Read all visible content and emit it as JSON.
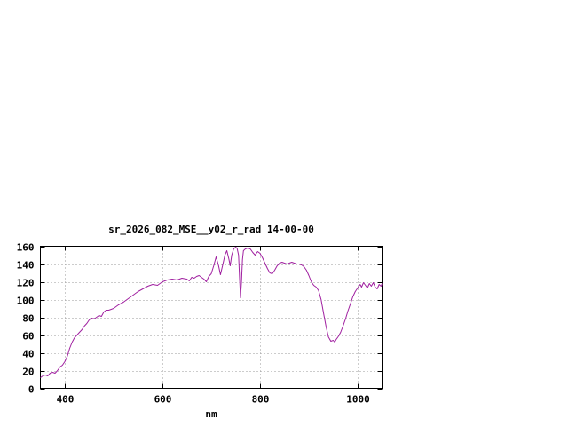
{
  "page": {
    "background_color": "#ffffff"
  },
  "chart_data": {
    "type": "line",
    "title": "sr_2026_082_MSE__y02_r_rad 14-00-00",
    "xlabel": "nm",
    "ylabel": "",
    "xlim": [
      350,
      1050
    ],
    "ylim": [
      0,
      160
    ],
    "xticks": [
      400,
      600,
      800,
      1000
    ],
    "yticks": [
      0,
      20,
      40,
      60,
      80,
      100,
      120,
      140,
      160
    ],
    "grid": true,
    "legend_position": "none",
    "line_color": "#a020a0",
    "series": [
      {
        "name": "sr_2026_082_MSE__y02_r_rad 14-00-00",
        "x": [
          350,
          355,
          360,
          365,
          370,
          375,
          380,
          385,
          390,
          395,
          400,
          405,
          410,
          415,
          420,
          425,
          430,
          435,
          440,
          445,
          450,
          455,
          460,
          465,
          470,
          475,
          480,
          485,
          490,
          495,
          500,
          510,
          520,
          530,
          540,
          550,
          560,
          570,
          580,
          590,
          600,
          610,
          620,
          630,
          640,
          650,
          655,
          660,
          665,
          670,
          675,
          680,
          685,
          690,
          695,
          700,
          705,
          710,
          715,
          719,
          724,
          728,
          732,
          736,
          739,
          742,
          746,
          750,
          753,
          756,
          758,
          760,
          762,
          764,
          766,
          770,
          775,
          780,
          785,
          790,
          795,
          800,
          805,
          810,
          815,
          820,
          825,
          830,
          835,
          840,
          845,
          850,
          855,
          860,
          865,
          870,
          875,
          880,
          885,
          890,
          895,
          900,
          905,
          910,
          915,
          920,
          925,
          930,
          935,
          940,
          945,
          950,
          953,
          956,
          960,
          965,
          970,
          975,
          980,
          985,
          990,
          995,
          1000,
          1005,
          1008,
          1012,
          1016,
          1020,
          1024,
          1028,
          1032,
          1036,
          1040,
          1044,
          1048,
          1050
        ],
        "y": [
          12,
          14,
          15,
          14,
          17,
          18,
          17,
          20,
          24,
          26,
          30,
          36,
          45,
          52,
          57,
          60,
          63,
          66,
          70,
          73,
          77,
          79,
          78,
          80,
          82,
          81,
          86,
          88,
          88,
          89,
          90,
          94,
          97,
          101,
          105,
          109,
          112,
          115,
          117,
          116,
          120,
          122,
          123,
          122,
          124,
          123,
          121,
          125,
          124,
          126,
          127,
          125,
          123,
          120,
          126,
          129,
          138,
          148,
          138,
          128,
          140,
          150,
          155,
          146,
          138,
          150,
          157,
          159,
          158,
          150,
          125,
          102,
          120,
          145,
          155,
          157,
          158,
          157,
          153,
          150,
          154,
          152,
          147,
          141,
          135,
          130,
          129,
          133,
          138,
          141,
          142,
          141,
          140,
          141,
          142,
          141,
          140,
          140,
          139,
          137,
          133,
          127,
          120,
          116,
          114,
          110,
          100,
          85,
          70,
          58,
          53,
          54,
          52,
          55,
          58,
          63,
          70,
          78,
          87,
          95,
          103,
          109,
          113,
          117,
          114,
          119,
          116,
          113,
          118,
          115,
          119,
          114,
          112,
          117,
          115,
          118
        ]
      }
    ]
  }
}
